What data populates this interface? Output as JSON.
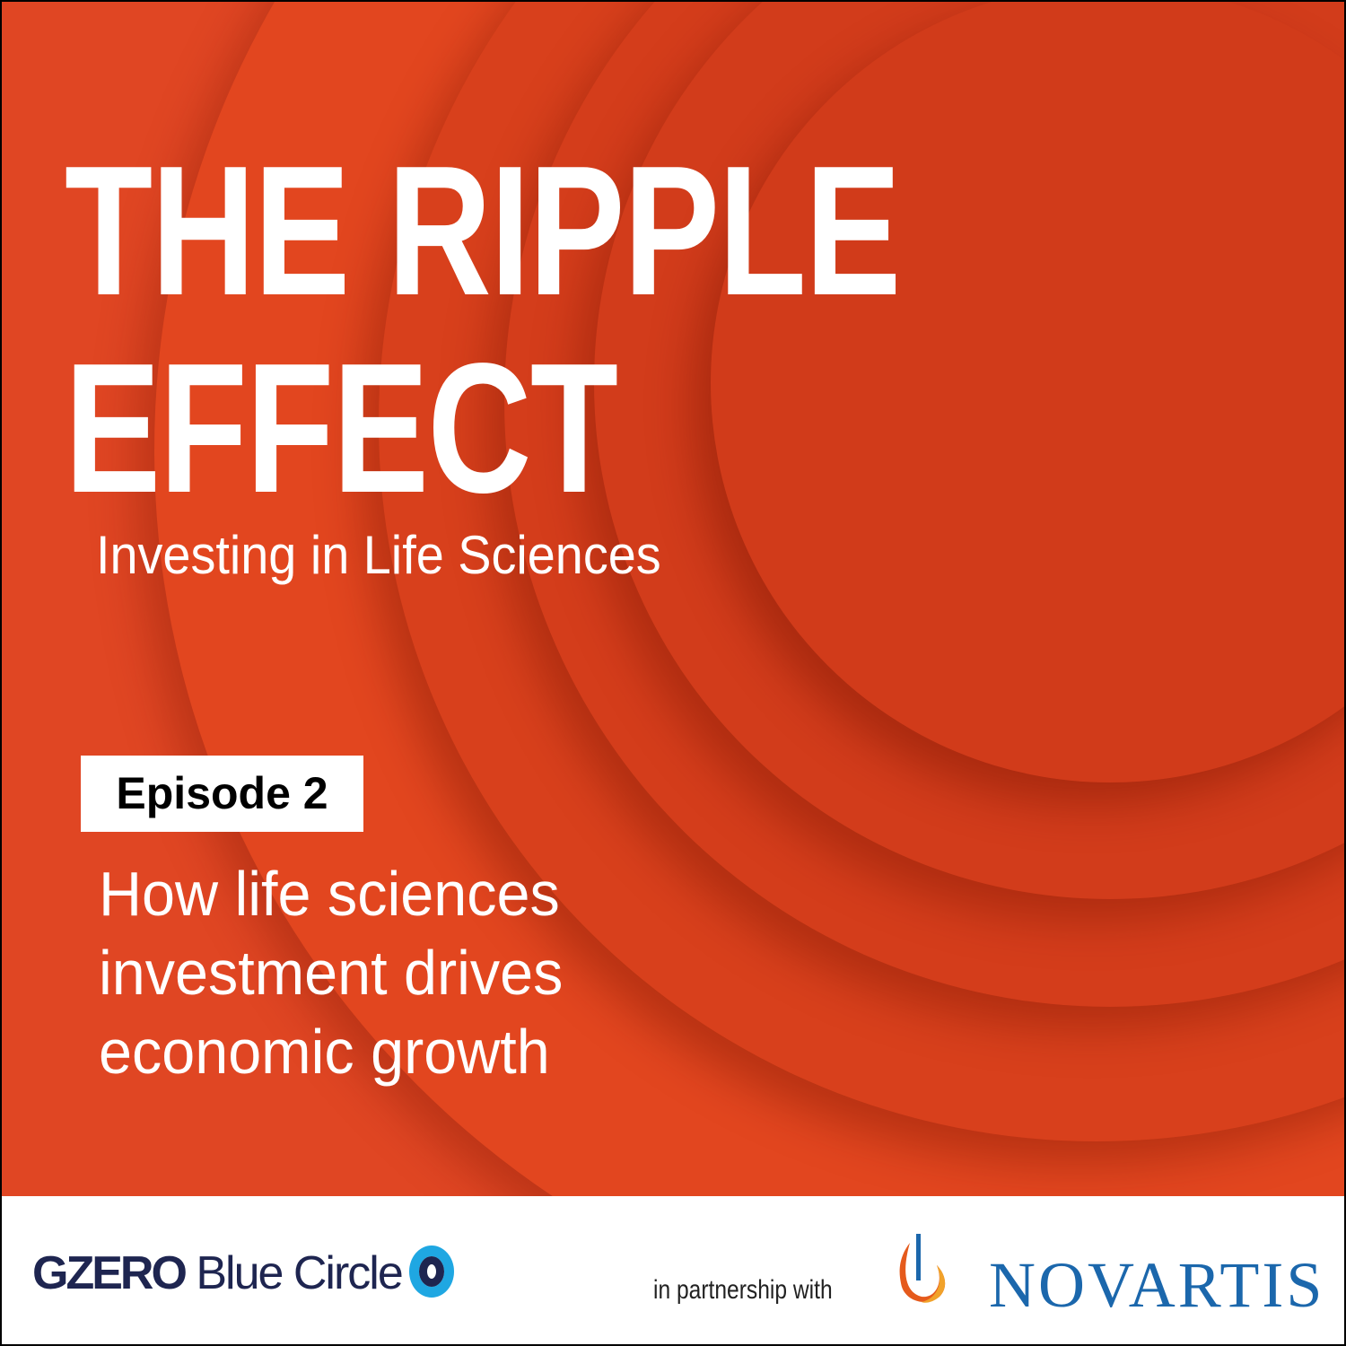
{
  "title": {
    "line1": "THE RIPPLE",
    "line2": "EFFECT"
  },
  "subtitle": "Investing in Life Sciences",
  "episode": {
    "label": "Episode 2"
  },
  "description": [
    "How life sciences",
    "investment drives",
    "economic growth"
  ],
  "footer": {
    "brand_bold": "GZERO",
    "brand_light": "Blue Circle",
    "partnership_text": "in partnership with",
    "partner": "NOVARTIS"
  },
  "colors": {
    "background": "#e04623",
    "gzero_navy": "#1e2550",
    "gzero_blue": "#1fa7e2",
    "novartis_blue": "#1b67ac"
  }
}
